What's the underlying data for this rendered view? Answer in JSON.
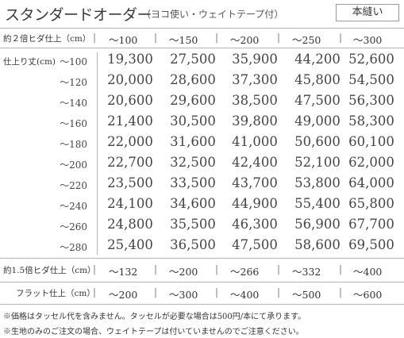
{
  "title": {
    "main": "スタンダードオーダー",
    "sub": "（ヨコ使い・ウェイトテープ付）",
    "badge": "本縫い"
  },
  "header": {
    "label": "約２倍ヒダ仕上（cm）",
    "columns": [
      "～100",
      "～150",
      "～200",
      "～250",
      "～300"
    ]
  },
  "table": {
    "row_header": "仕上り丈(cm)",
    "rows": [
      {
        "label": "～100",
        "prices": [
          "19,300",
          "27,500",
          "35,900",
          "44,200",
          "52,600"
        ]
      },
      {
        "label": "～120",
        "prices": [
          "20,000",
          "28,600",
          "37,300",
          "45,800",
          "54,500"
        ]
      },
      {
        "label": "～140",
        "prices": [
          "20,600",
          "29,600",
          "38,500",
          "47,500",
          "56,300"
        ]
      },
      {
        "label": "～160",
        "prices": [
          "21,400",
          "30,500",
          "39,800",
          "49,000",
          "58,300"
        ]
      },
      {
        "label": "～180",
        "prices": [
          "22,000",
          "31,600",
          "41,000",
          "50,600",
          "60,100"
        ]
      },
      {
        "label": "～200",
        "prices": [
          "22,700",
          "32,500",
          "42,400",
          "52,100",
          "62,000"
        ]
      },
      {
        "label": "～220",
        "prices": [
          "23,500",
          "33,500",
          "43,700",
          "53,800",
          "64,000"
        ]
      },
      {
        "label": "～240",
        "prices": [
          "24,100",
          "34,600",
          "44,900",
          "55,400",
          "65,800"
        ]
      },
      {
        "label": "～260",
        "prices": [
          "24,800",
          "35,500",
          "46,300",
          "56,900",
          "67,700"
        ]
      },
      {
        "label": "～280",
        "prices": [
          "25,400",
          "36,500",
          "47,500",
          "58,600",
          "69,500"
        ]
      }
    ]
  },
  "footer_rows": [
    {
      "label": "約1.5倍ヒダ仕上（cm）",
      "values": [
        "～132",
        "～200",
        "～266",
        "～332",
        "～400"
      ]
    },
    {
      "label": "フラット仕上（cm）",
      "values": [
        "～200",
        "～300",
        "～400",
        "～500",
        "～600"
      ]
    }
  ],
  "notes": [
    "※価格はタッセル代を含みません。タッセルが必要な場合は500円/本にて承ります。",
    "※生地のみのご注文の場合、ウェイトテープは付いていませんのでご注意ください。"
  ]
}
